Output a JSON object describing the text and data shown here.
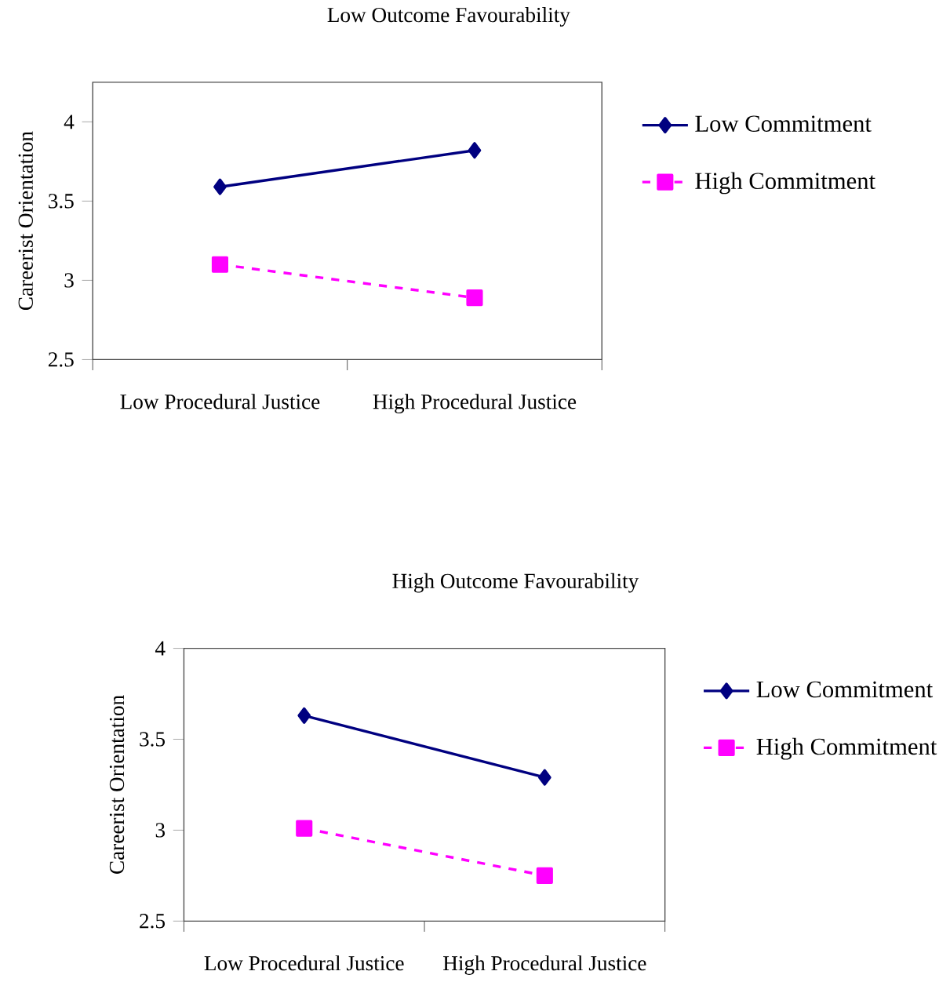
{
  "chart_data": [
    {
      "type": "line",
      "title": "Low Outcome Favourability",
      "ylabel": "Careerist Orientation",
      "categories": [
        "Low Procedural Justice",
        "High Procedural Justice"
      ],
      "series": [
        {
          "name": "Low Commitment",
          "color": "#000080",
          "values": [
            3.59,
            3.82
          ],
          "marker": "diamond",
          "line_style": "solid"
        },
        {
          "name": "High Commitment",
          "color": "#ff00ff",
          "values": [
            3.1,
            2.89
          ],
          "marker": "square",
          "line_style": "dashed"
        }
      ],
      "ylim": [
        2.5,
        4.25
      ],
      "yticks": [
        2.5,
        3,
        3.5,
        4
      ],
      "legend": "right"
    },
    {
      "type": "line",
      "title": "High Outcome Favourability",
      "ylabel": "Careerist Orientation",
      "categories": [
        "Low Procedural Justice",
        "High Procedural Justice"
      ],
      "series": [
        {
          "name": "Low Commitment",
          "color": "#000080",
          "values": [
            3.63,
            3.29
          ],
          "marker": "diamond",
          "line_style": "solid"
        },
        {
          "name": "High Commitment",
          "color": "#ff00ff",
          "values": [
            3.01,
            2.75
          ],
          "marker": "square",
          "line_style": "dashed"
        }
      ],
      "ylim": [
        2.5,
        4
      ],
      "yticks": [
        2.5,
        3,
        3.5,
        4
      ],
      "legend": "right"
    }
  ]
}
